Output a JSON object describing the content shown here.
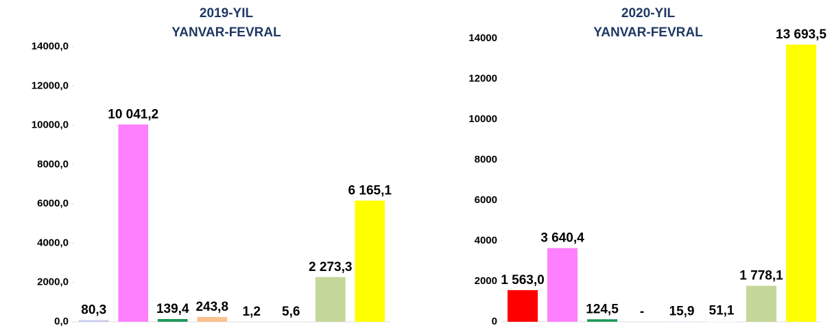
{
  "chart_data": [
    {
      "type": "bar",
      "title": [
        "2019-YIL",
        "YANVAR-FEVRAL"
      ],
      "categories": [
        null,
        null,
        null,
        null,
        null,
        null,
        null,
        null
      ],
      "values": [
        80.3,
        10041.2,
        139.4,
        243.8,
        1.2,
        5.6,
        2273.3,
        6165.1
      ],
      "value_labels": [
        "80,3",
        "10 041,2",
        "139,4",
        "243,8",
        "1,2",
        "5,6",
        "2 273,3",
        "6 165,1"
      ],
      "colors": [
        "#c6c6ef",
        "#ff80ff",
        "#1e9a5a",
        "#f9c28f",
        "#d0d0ff",
        "#ffffff",
        "#c4d79b",
        "#ffff00"
      ],
      "ylim": [
        0,
        14000
      ],
      "yticks": [
        {
          "value": 0,
          "label": "0,0"
        },
        {
          "value": 2000,
          "label": "2000,0"
        },
        {
          "value": 4000,
          "label": "4000,0"
        },
        {
          "value": 6000,
          "label": "6000,0"
        },
        {
          "value": 8000,
          "label": "8000,0"
        },
        {
          "value": 10000,
          "label": "10000,0"
        },
        {
          "value": 12000,
          "label": "12000,0"
        },
        {
          "value": 14000,
          "label": "14000,0"
        }
      ],
      "grid": false
    },
    {
      "type": "bar",
      "title": [
        "2020-YIL",
        "YANVAR-FEVRAL"
      ],
      "categories": [
        null,
        null,
        null,
        null,
        null,
        null,
        null,
        null
      ],
      "values": [
        1563.0,
        3640.4,
        124.5,
        0,
        15.9,
        51.1,
        1778.1,
        13693.5
      ],
      "value_labels": [
        "1 563,0",
        "3 640,4",
        "124,5",
        "-",
        "15,9",
        "51,1",
        "1 778,1",
        "13 693,5"
      ],
      "colors": [
        "#ff0000",
        "#ff80ff",
        "#1e9a5a",
        "#f9c28f",
        "#d0d0ff",
        "#ffffff",
        "#c4d79b",
        "#ffff00"
      ],
      "ylim": [
        0,
        14000
      ],
      "yticks": [
        0,
        2000,
        4000,
        6000,
        8000,
        10000,
        12000,
        14000
      ],
      "grid": false
    }
  ]
}
